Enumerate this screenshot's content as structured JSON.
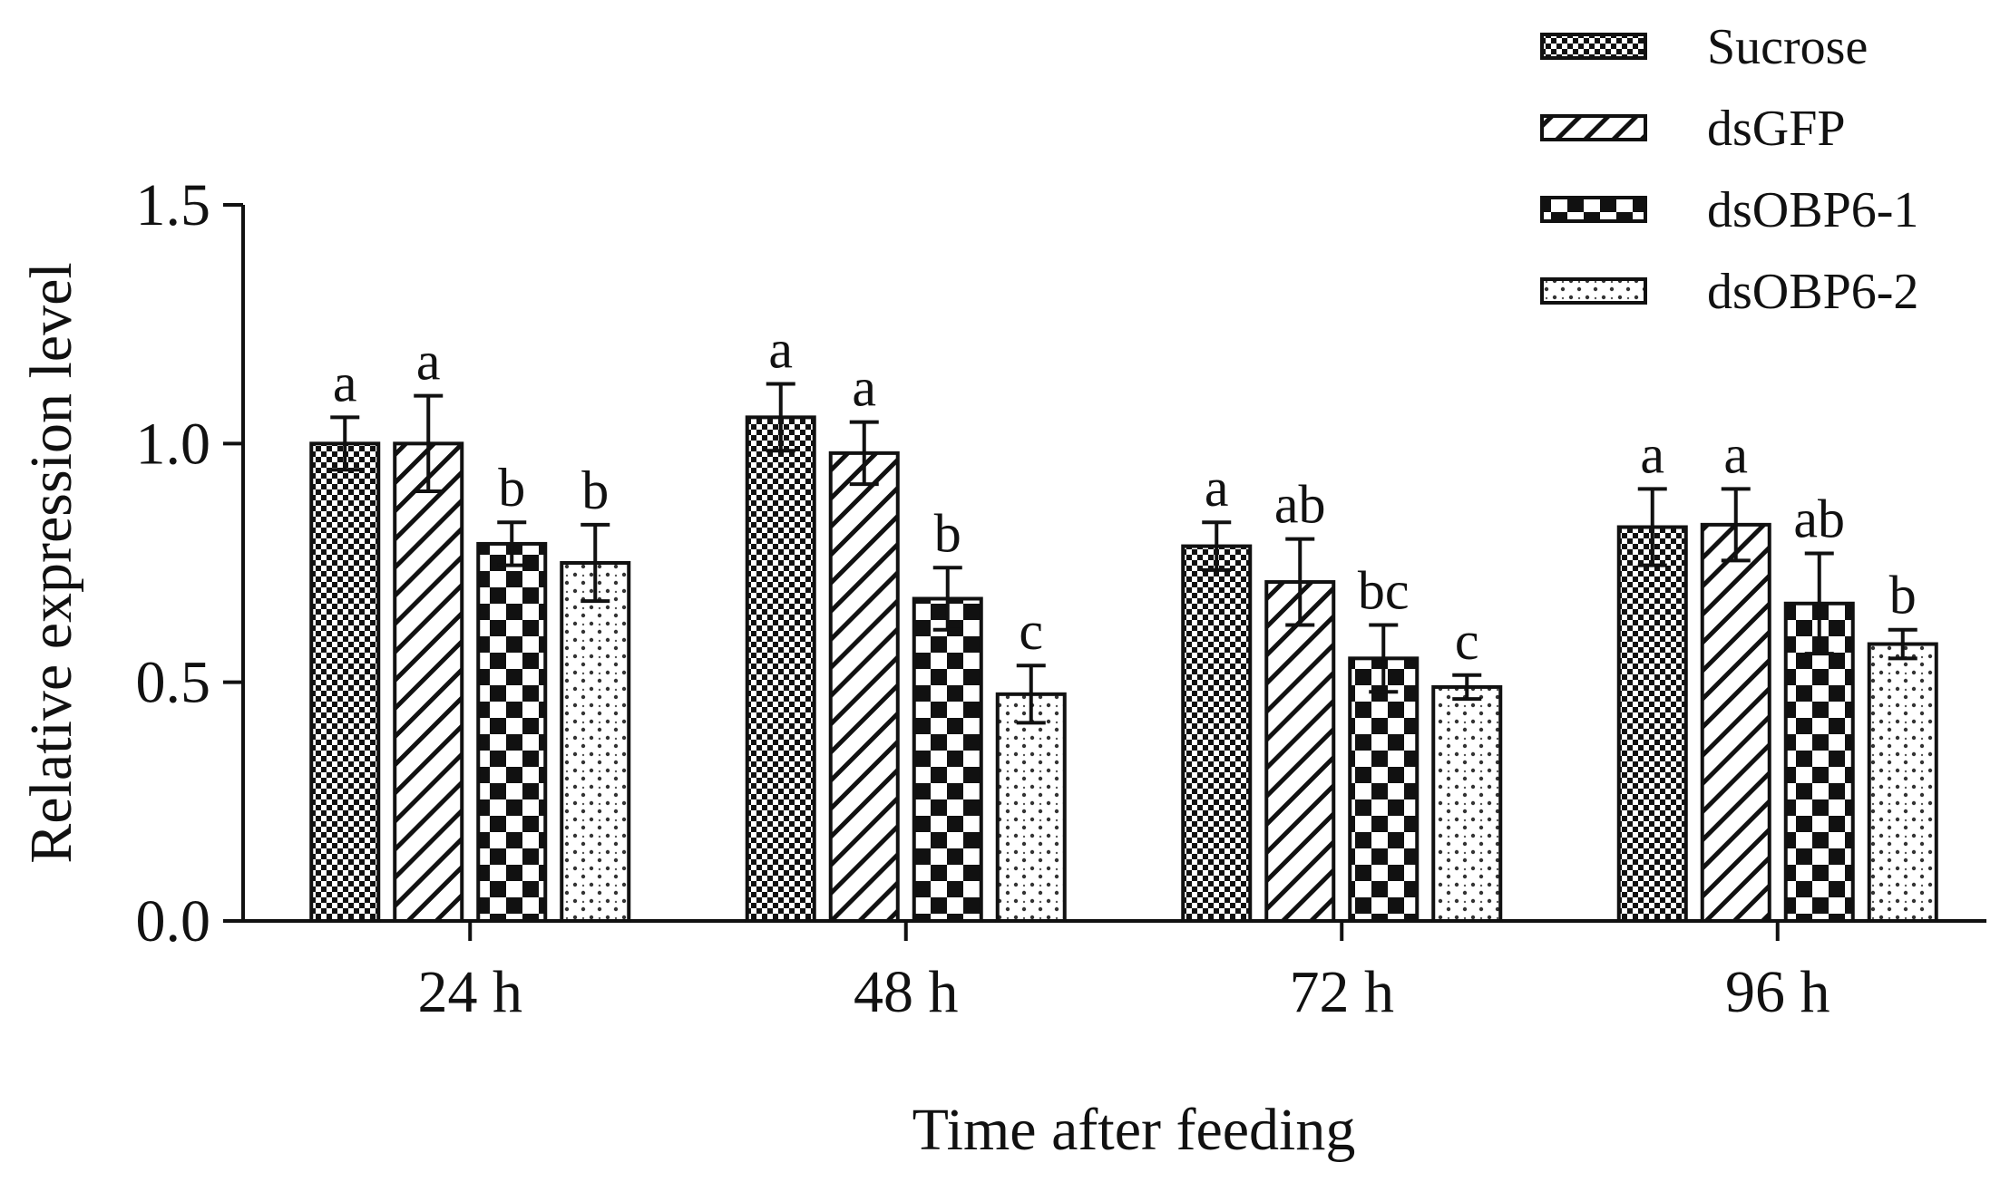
{
  "chart_data": {
    "type": "bar",
    "title": "",
    "xlabel": "Time after feeding",
    "ylabel": "Relative expression level",
    "ylim": [
      0,
      1.5
    ],
    "yticks": [
      0.0,
      0.5,
      1.0,
      1.5
    ],
    "ytick_labels": [
      "0.0",
      "0.5",
      "1.0",
      "1.5"
    ],
    "categories": [
      "24 h",
      "48 h",
      "72 h",
      "96 h"
    ],
    "legend_position": "top-right",
    "series": [
      {
        "name": "Sucrose",
        "pattern": "small-check",
        "values": [
          1.0,
          1.055,
          0.785,
          0.825
        ],
        "errors": [
          0.055,
          0.07,
          0.05,
          0.08
        ],
        "labels": [
          "a",
          "a",
          "a",
          "a"
        ]
      },
      {
        "name": "dsGFP",
        "pattern": "diagonal",
        "values": [
          1.0,
          0.98,
          0.71,
          0.83
        ],
        "errors": [
          0.1,
          0.065,
          0.09,
          0.075
        ],
        "labels": [
          "a",
          "a",
          "ab",
          "a"
        ]
      },
      {
        "name": "dsOBP6-1",
        "pattern": "big-check",
        "values": [
          0.79,
          0.675,
          0.55,
          0.665
        ],
        "errors": [
          0.045,
          0.065,
          0.07,
          0.105
        ],
        "labels": [
          "b",
          "b",
          "bc",
          "ab"
        ]
      },
      {
        "name": "dsOBP6-2",
        "pattern": "dots",
        "values": [
          0.75,
          0.475,
          0.49,
          0.58
        ],
        "errors": [
          0.08,
          0.06,
          0.025,
          0.03
        ],
        "labels": [
          "b",
          "c",
          "c",
          "b"
        ]
      }
    ]
  }
}
